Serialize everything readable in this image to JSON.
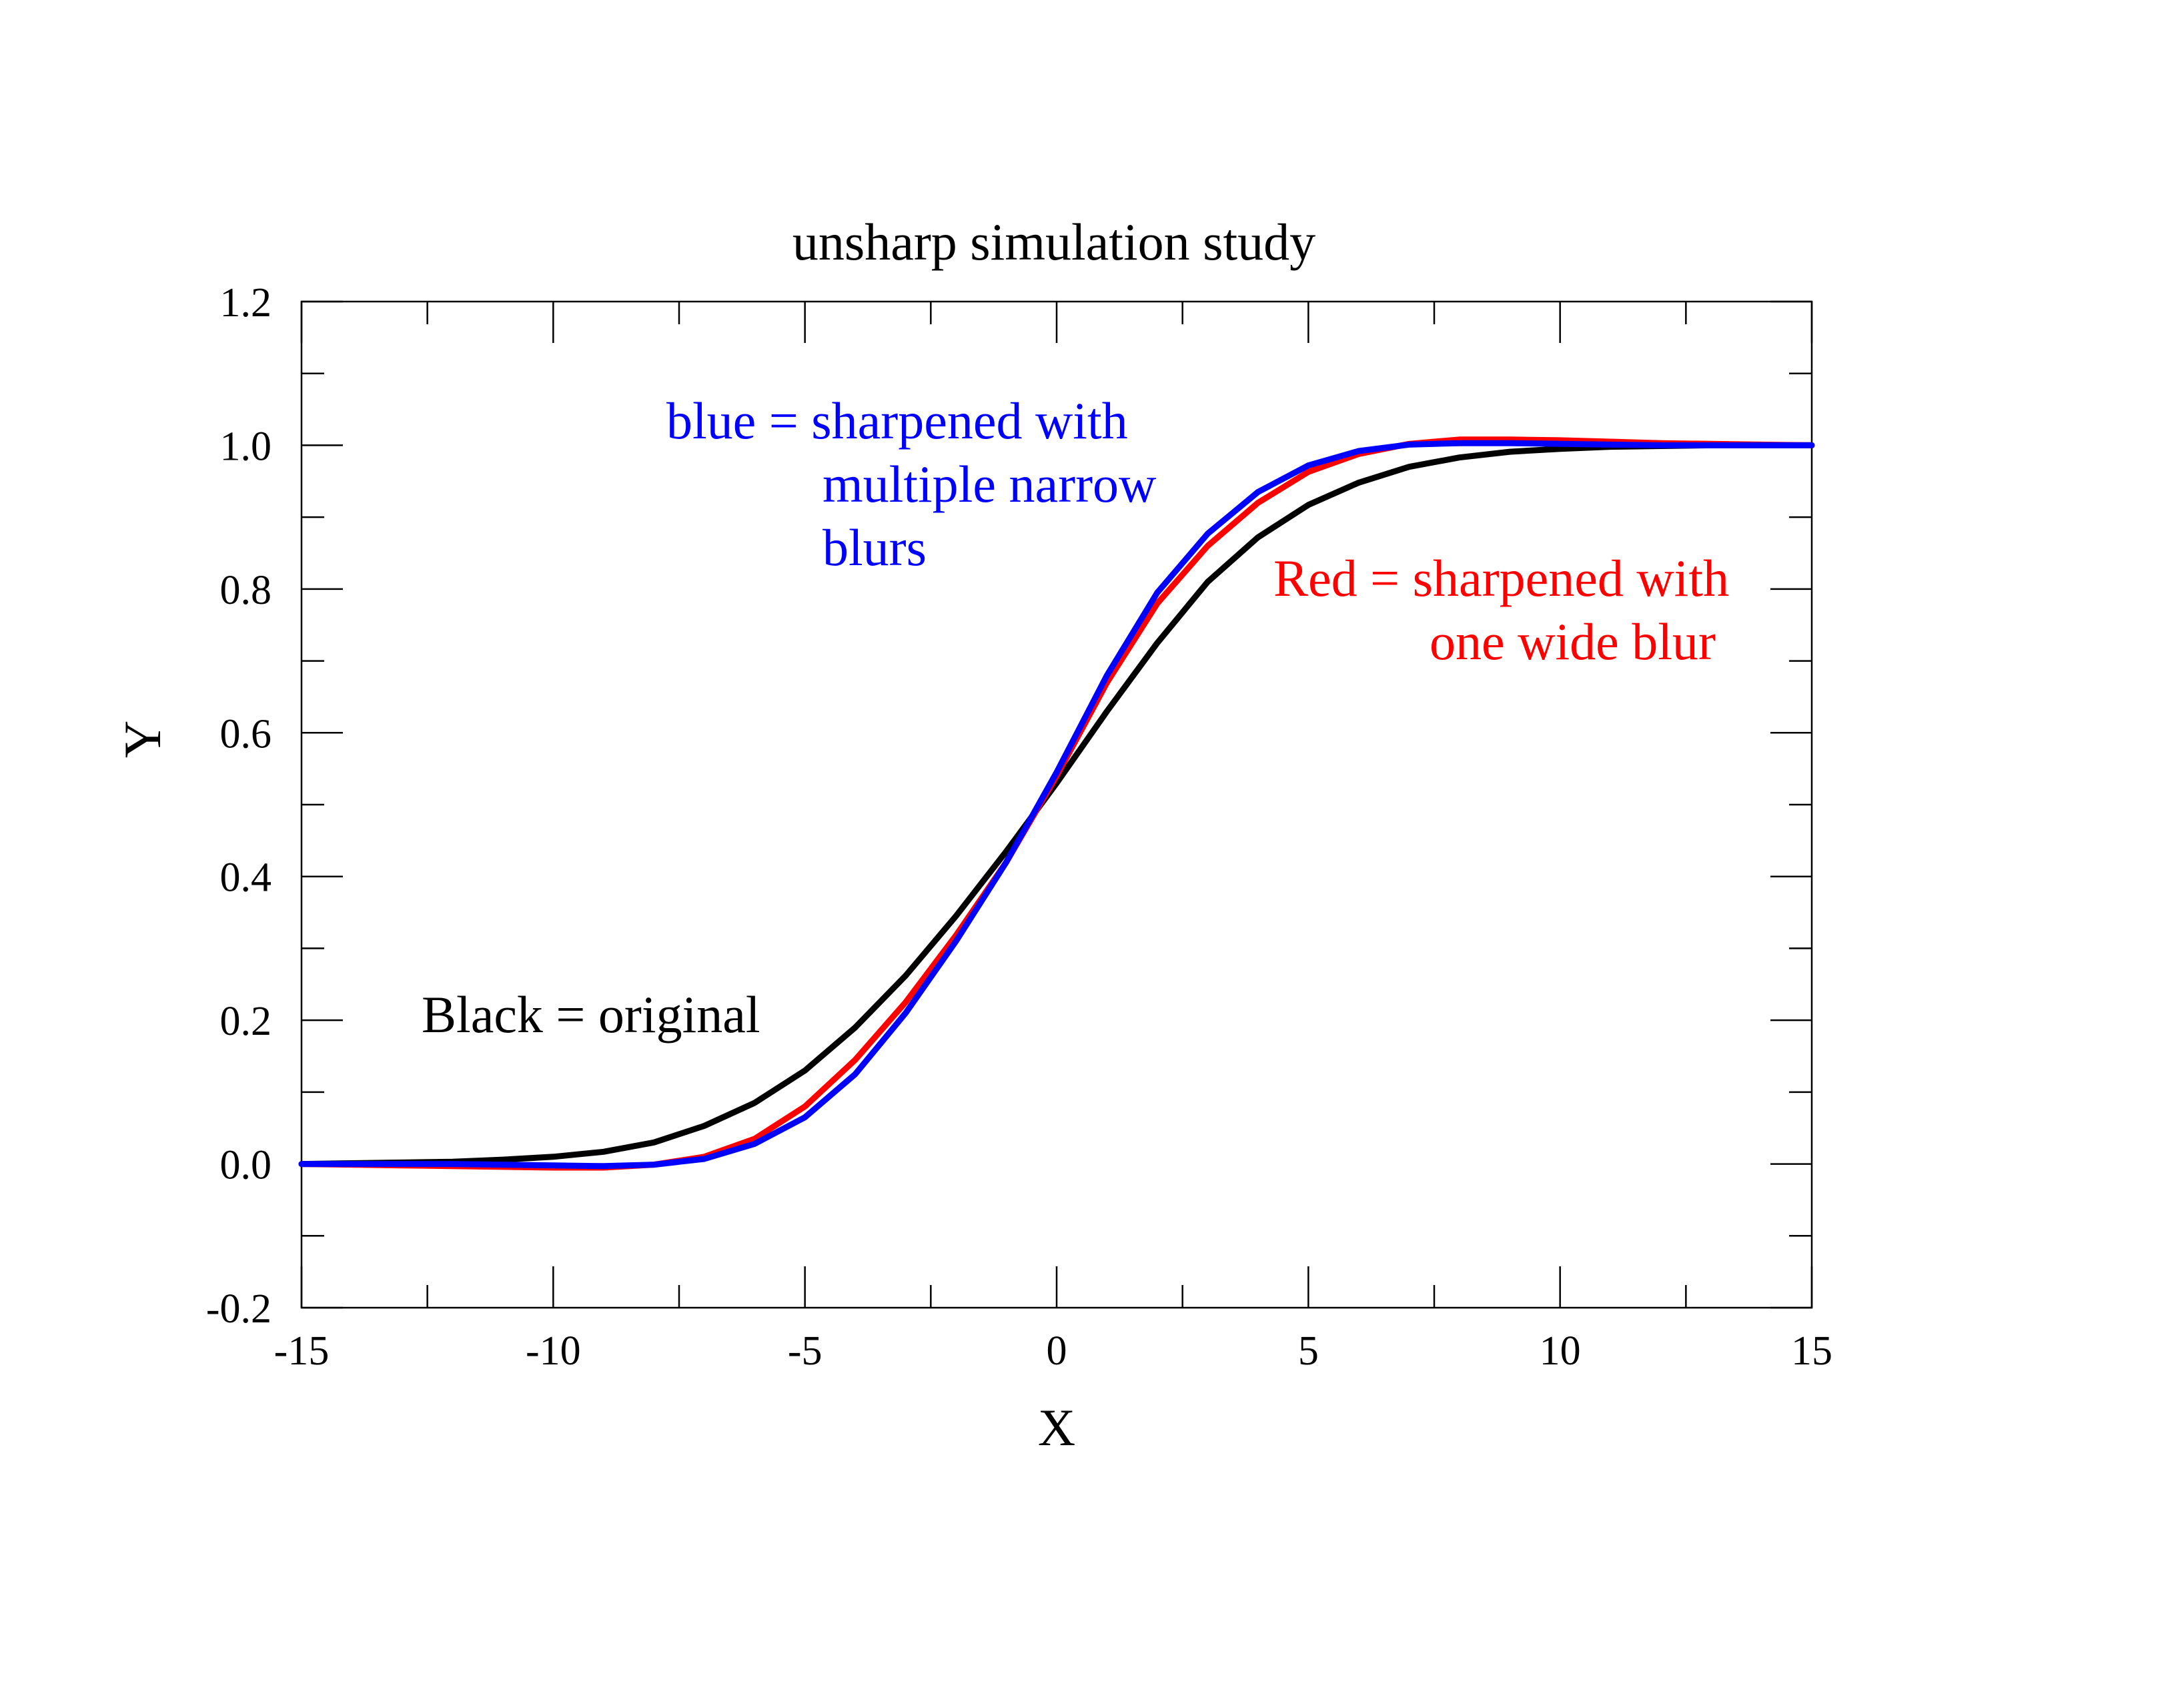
{
  "chart_data": {
    "type": "line",
    "title": "unsharp simulation study",
    "xlabel": "X",
    "ylabel": "Y",
    "xlim": [
      -15,
      15
    ],
    "ylim": [
      -0.2,
      1.2
    ],
    "xticks": [
      -15,
      -10,
      -5,
      0,
      5,
      10,
      15
    ],
    "yticks": [
      -0.2,
      0.0,
      0.2,
      0.4,
      0.6,
      0.8,
      1.0,
      1.2
    ],
    "xtick_labels": [
      "-15",
      "-10",
      "-5",
      "0",
      "5",
      "10",
      "15"
    ],
    "ytick_labels": [
      "-0.2",
      "0.0",
      "0.2",
      "0.4",
      "0.6",
      "0.8",
      "1.0",
      "1.2"
    ],
    "grid": false,
    "series": [
      {
        "color": "#000000",
        "x": [
          -15,
          -14,
          -13,
          -12,
          -11,
          -10,
          -9,
          -8,
          -7,
          -6,
          -5,
          -4,
          -3,
          -2,
          -1,
          0,
          1,
          2,
          3,
          4,
          5,
          6,
          7,
          8,
          9,
          10,
          11,
          12,
          13,
          14,
          15
        ],
        "y": [
          0.0,
          0.001,
          0.002,
          0.003,
          0.006,
          0.01,
          0.017,
          0.03,
          0.053,
          0.085,
          0.13,
          0.19,
          0.262,
          0.345,
          0.435,
          0.53,
          0.63,
          0.725,
          0.81,
          0.872,
          0.917,
          0.948,
          0.97,
          0.983,
          0.991,
          0.995,
          0.998,
          0.999,
          1.0,
          1.0,
          1.0
        ]
      },
      {
        "color": "#ff0000",
        "x": [
          -15,
          -14,
          -13,
          -12,
          -11,
          -10,
          -9,
          -8,
          -7,
          -6,
          -5,
          -4,
          -3,
          -2,
          -1,
          0,
          1,
          2,
          3,
          4,
          5,
          6,
          7,
          8,
          9,
          10,
          11,
          12,
          13,
          14,
          15
        ],
        "y": [
          0.0,
          -0.001,
          -0.002,
          -0.003,
          -0.004,
          -0.005,
          -0.005,
          -0.001,
          0.01,
          0.035,
          0.08,
          0.145,
          0.225,
          0.318,
          0.42,
          0.54,
          0.67,
          0.78,
          0.86,
          0.92,
          0.963,
          0.988,
          1.002,
          1.008,
          1.008,
          1.007,
          1.005,
          1.003,
          1.002,
          1.001,
          1.0
        ]
      },
      {
        "color": "#0000ff",
        "x": [
          -15,
          -14,
          -13,
          -12,
          -11,
          -10,
          -9,
          -8,
          -7,
          -6,
          -5,
          -4,
          -3,
          -2,
          -1,
          0,
          1,
          2,
          3,
          4,
          5,
          6,
          7,
          8,
          9,
          10,
          11,
          12,
          13,
          14,
          15
        ],
        "y": [
          0.0,
          0.0,
          0.0,
          0.0,
          -0.001,
          -0.002,
          -0.003,
          -0.001,
          0.007,
          0.028,
          0.065,
          0.125,
          0.21,
          0.31,
          0.42,
          0.545,
          0.68,
          0.795,
          0.877,
          0.935,
          0.972,
          0.992,
          1.001,
          1.003,
          1.003,
          1.002,
          1.001,
          1.0,
          1.0,
          1.0,
          1.0
        ]
      }
    ],
    "annotations": {
      "blue_line1": "blue = sharpened with",
      "blue_line2": "multiple narrow",
      "blue_line3": "blurs",
      "red_line1": "Red = sharpened with",
      "red_line2": "one wide blur",
      "black_line1": "Black = original"
    },
    "colors": {
      "black": "#000000",
      "red": "#ff0000",
      "blue": "#0000ff"
    }
  }
}
